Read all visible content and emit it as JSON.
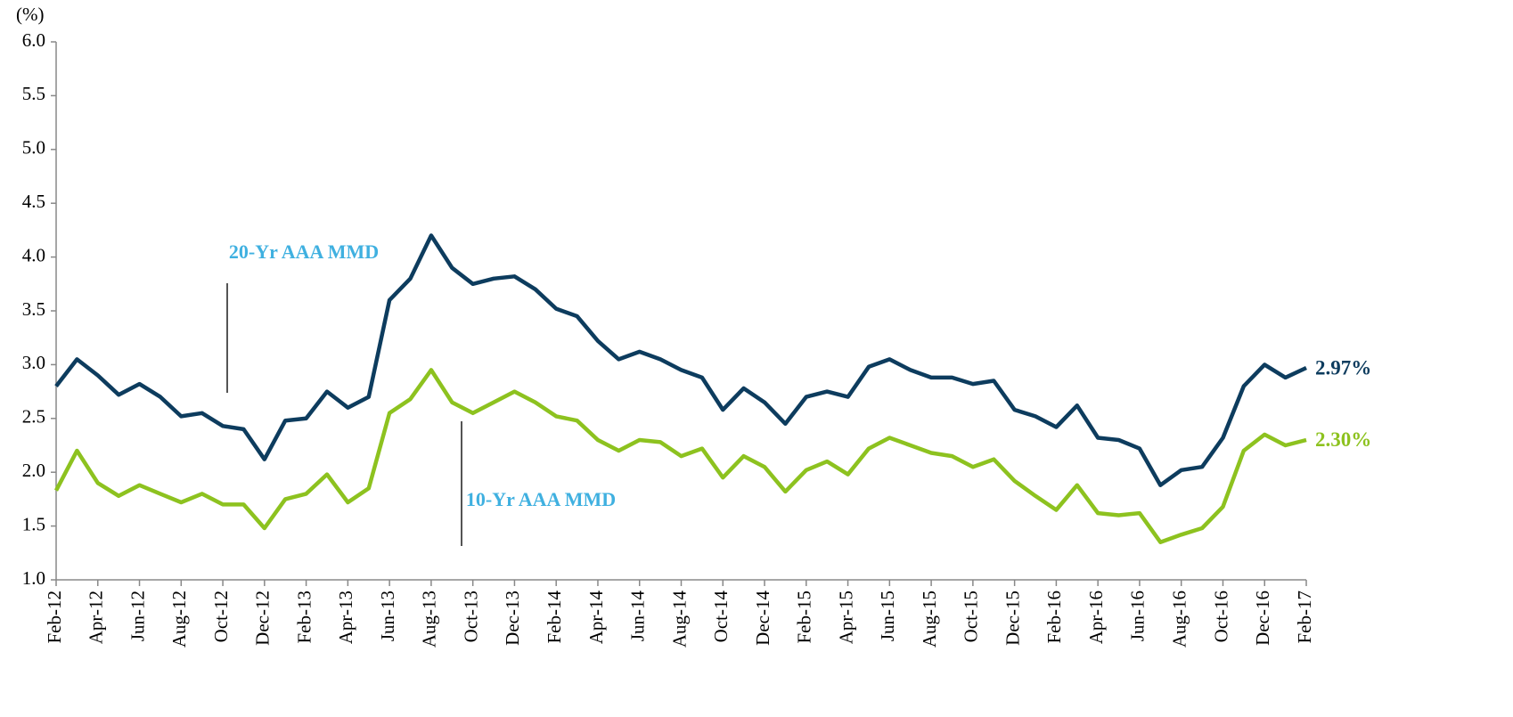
{
  "chart_data": {
    "type": "line",
    "y_label": "(%)",
    "categories": [
      "Feb-12",
      null,
      "Apr-12",
      null,
      "Jun-12",
      null,
      "Aug-12",
      null,
      "Oct-12",
      null,
      "Dec-12",
      null,
      "Feb-13",
      null,
      "Apr-13",
      null,
      "Jun-13",
      null,
      "Aug-13",
      null,
      "Oct-13",
      null,
      "Dec-13",
      null,
      "Feb-14",
      null,
      "Apr-14",
      null,
      "Jun-14",
      null,
      "Aug-14",
      null,
      "Oct-14",
      null,
      "Dec-14",
      null,
      "Feb-15",
      null,
      "Apr-15",
      null,
      "Jun-15",
      null,
      "Aug-15",
      null,
      "Oct-15",
      null,
      "Dec-15",
      null,
      "Feb-16",
      null,
      "Apr-16",
      null,
      "Jun-16",
      null,
      "Aug-16",
      null,
      "Oct-16",
      null,
      "Dec-16",
      null,
      "Feb-17"
    ],
    "series": [
      {
        "name": "20-Yr AAA MMD",
        "color": "#0d3c5e",
        "label": "2.97%",
        "values": [
          2.8,
          3.05,
          2.9,
          2.72,
          2.82,
          2.7,
          2.52,
          2.55,
          2.43,
          2.4,
          2.12,
          2.48,
          2.5,
          2.75,
          2.6,
          2.7,
          3.6,
          3.8,
          4.2,
          3.9,
          3.75,
          3.8,
          3.82,
          3.7,
          3.52,
          3.45,
          3.22,
          3.05,
          3.12,
          3.05,
          2.95,
          2.88,
          2.58,
          2.78,
          2.65,
          2.45,
          2.7,
          2.75,
          2.7,
          2.98,
          3.05,
          2.95,
          2.88,
          2.88,
          2.82,
          2.85,
          2.58,
          2.52,
          2.42,
          2.62,
          2.32,
          2.3,
          2.22,
          1.88,
          2.02,
          2.05,
          2.32,
          2.8,
          3.0,
          2.88,
          2.97
        ]
      },
      {
        "name": "10-Yr AAA MMD",
        "color": "#8dc21f",
        "label": "2.30%",
        "values": [
          1.83,
          2.2,
          1.9,
          1.78,
          1.88,
          1.8,
          1.72,
          1.8,
          1.7,
          1.7,
          1.48,
          1.75,
          1.8,
          1.98,
          1.72,
          1.85,
          2.55,
          2.68,
          2.95,
          2.65,
          2.55,
          2.65,
          2.75,
          2.65,
          2.52,
          2.48,
          2.3,
          2.2,
          2.3,
          2.28,
          2.15,
          2.22,
          1.95,
          2.15,
          2.05,
          1.82,
          2.02,
          2.1,
          1.98,
          2.22,
          2.32,
          2.25,
          2.18,
          2.15,
          2.05,
          2.12,
          1.92,
          1.78,
          1.65,
          1.88,
          1.62,
          1.6,
          1.62,
          1.35,
          1.42,
          1.48,
          1.68,
          2.2,
          2.35,
          2.25,
          2.3
        ]
      }
    ],
    "ylim": [
      1,
      6
    ],
    "yticks": [
      {
        "value": 1,
        "label": "1.0"
      },
      1.5,
      {
        "value": 2,
        "label": "2.0"
      },
      2.5,
      {
        "value": 3,
        "label": "3.0"
      },
      3.5,
      {
        "value": 4,
        "label": "4.0"
      },
      4.5,
      {
        "value": 5,
        "label": "5.0"
      },
      5.5,
      {
        "value": 6,
        "label": "6.0"
      }
    ],
    "grid": false
  }
}
